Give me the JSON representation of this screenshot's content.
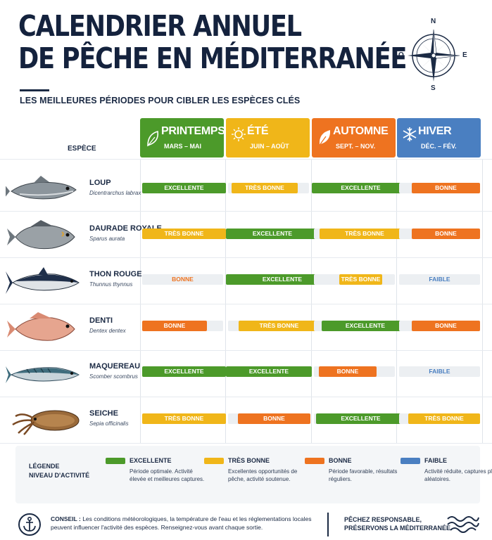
{
  "header": {
    "title_line1": "CALENDRIER ANNUEL",
    "title_line2": "DE PÊCHE EN MÉDITERRANÉE",
    "subtitle": "LES MEILLEURES PÉRIODES POUR CIBLER LES ESPÈCES CLÉS"
  },
  "compass": {
    "n": "N",
    "s": "S",
    "e": "E",
    "o": "O"
  },
  "table": {
    "species_header": "ESPÈCE",
    "seasons": [
      {
        "name": "PRINTEMPS",
        "months": "MARS – MAI",
        "color": "#4c9a2a",
        "icon": "leaf-icon"
      },
      {
        "name": "ÉTÉ",
        "months": "JUIN – AOÛT",
        "color": "#f0b619",
        "icon": "sun-icon"
      },
      {
        "name": "AUTOMNE",
        "months": "SEPT. – NOV.",
        "color": "#ee7320",
        "icon": "autumn-leaf-icon"
      },
      {
        "name": "HIVER",
        "months": "DÉC. – FÉV.",
        "color": "#4a7fc1",
        "icon": "snowflake-icon"
      }
    ],
    "species": [
      {
        "name": "LOUP",
        "latin": "Dicentrarchus labrax",
        "icon": "sea-bass-icon",
        "ratings": [
          "EXCELLENTE",
          "TRÈS BONNE",
          "EXCELLENTE",
          "BONNE"
        ]
      },
      {
        "name": "DAURADE ROYALE",
        "latin": "Sparus aurata",
        "icon": "sea-bream-icon",
        "ratings": [
          "TRÈS BONNE",
          "EXCELLENTE",
          "TRÈS BONNE",
          "BONNE"
        ]
      },
      {
        "name": "THON ROUGE",
        "latin": "Thunnus thynnus",
        "icon": "tuna-icon",
        "ratings": [
          "BONNE",
          "EXCELLENTE",
          "TRÈS BONNE",
          "FAIBLE"
        ]
      },
      {
        "name": "DENTI",
        "latin": "Dentex dentex",
        "icon": "dentex-icon",
        "ratings": [
          "BONNE",
          "TRÈS BONNE",
          "EXCELLENTE",
          "BONNE"
        ]
      },
      {
        "name": "MAQUEREAU",
        "latin": "Scomber scombrus",
        "icon": "mackerel-icon",
        "ratings": [
          "EXCELLENTE",
          "EXCELLENTE",
          "BONNE",
          "FAIBLE"
        ]
      },
      {
        "name": "SEICHE",
        "latin": "Sepia officinalis",
        "icon": "cuttlefish-icon",
        "ratings": [
          "TRÈS BONNE",
          "BONNE",
          "EXCELLENTE",
          "TRÈS BONNE"
        ]
      }
    ]
  },
  "legend": {
    "title": "LÉGENDE\nNIVEAU D'ACTIVITÉ",
    "items": [
      {
        "name": "EXCELLENTE",
        "color": "#4c9a2a",
        "desc": "Période optimale. Activité élevée et meilleures captures."
      },
      {
        "name": "TRÈS BONNE",
        "color": "#f0b619",
        "desc": "Excellentes opportunités de pêche, activité soutenue."
      },
      {
        "name": "BONNE",
        "color": "#ee7320",
        "desc": "Période favorable, résultats réguliers."
      },
      {
        "name": "FAIBLE",
        "color": "#4a7fc1",
        "desc": "Activité réduite, captures plus aléatoires."
      }
    ]
  },
  "footer": {
    "conseil_label": "CONSEIL :",
    "conseil_text": " Les conditions météorologiques, la température de l'eau et les réglementations locales peuvent influencer l'activité des espèces. Renseignez-vous avant chaque sortie.",
    "slogan": "PÊCHEZ RESPONSABLE,\nPRÉSERVONS LA MÉDITERRANÉE."
  }
}
